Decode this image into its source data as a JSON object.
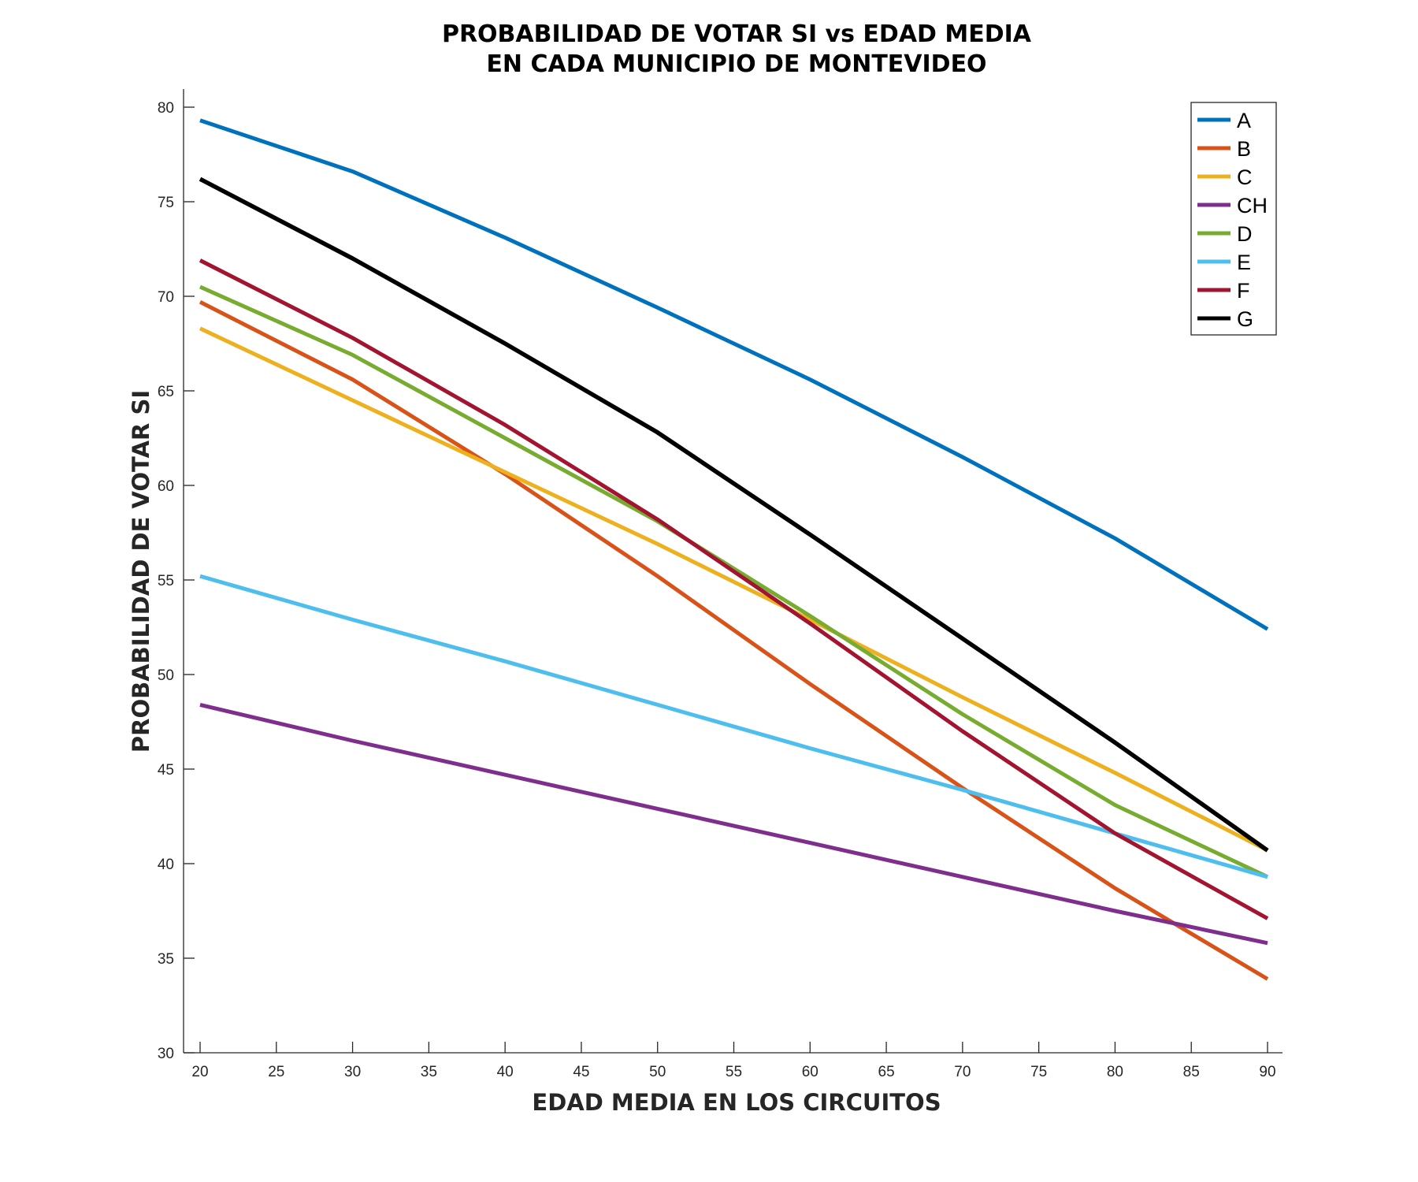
{
  "chart_data": {
    "type": "line",
    "title": [
      "PROBABILIDAD DE VOTAR  SI  vs  EDAD MEDIA",
      "EN CADA MUNICIPIO DE MONTEVIDEO"
    ],
    "xlabel": "EDAD MEDIA EN LOS CIRCUITOS",
    "ylabel": "PROBABILIDAD DE VOTAR  SI",
    "xlim": [
      19,
      91
    ],
    "ylim": [
      30,
      81
    ],
    "xticks": [
      20,
      25,
      30,
      35,
      40,
      45,
      50,
      55,
      60,
      65,
      70,
      75,
      80,
      85,
      90
    ],
    "yticks": [
      30,
      35,
      40,
      45,
      50,
      55,
      60,
      65,
      70,
      75,
      80
    ],
    "grid": false,
    "legend_position": "top-right",
    "x": [
      20,
      30,
      40,
      50,
      60,
      70,
      80,
      90
    ],
    "series": [
      {
        "name": "A",
        "color": "#0072BD",
        "values": [
          79.3,
          76.6,
          73.1,
          69.4,
          65.6,
          61.5,
          57.2,
          52.4
        ]
      },
      {
        "name": "B",
        "color": "#D95319",
        "values": [
          69.7,
          65.6,
          60.6,
          55.2,
          49.5,
          44.0,
          38.7,
          33.9
        ]
      },
      {
        "name": "C",
        "color": "#EDB120",
        "values": [
          68.3,
          64.5,
          60.7,
          56.9,
          52.9,
          48.8,
          44.8,
          40.7
        ]
      },
      {
        "name": "CH",
        "color": "#7E2F8E",
        "values": [
          48.4,
          46.5,
          44.7,
          42.9,
          41.1,
          39.3,
          37.5,
          35.8
        ]
      },
      {
        "name": "D",
        "color": "#77AC30",
        "values": [
          70.5,
          66.9,
          62.5,
          58.1,
          53.1,
          47.9,
          43.1,
          39.3
        ]
      },
      {
        "name": "E",
        "color": "#4DBEEE",
        "values": [
          55.2,
          52.9,
          50.7,
          48.4,
          46.1,
          43.9,
          41.6,
          39.3
        ]
      },
      {
        "name": "F",
        "color": "#A2142F",
        "values": [
          71.9,
          67.8,
          63.2,
          58.2,
          52.7,
          47.0,
          41.6,
          37.1
        ]
      },
      {
        "name": "G",
        "color": "#000000",
        "values": [
          76.2,
          72.0,
          67.5,
          62.8,
          57.4,
          51.9,
          46.4,
          40.7
        ]
      }
    ]
  }
}
